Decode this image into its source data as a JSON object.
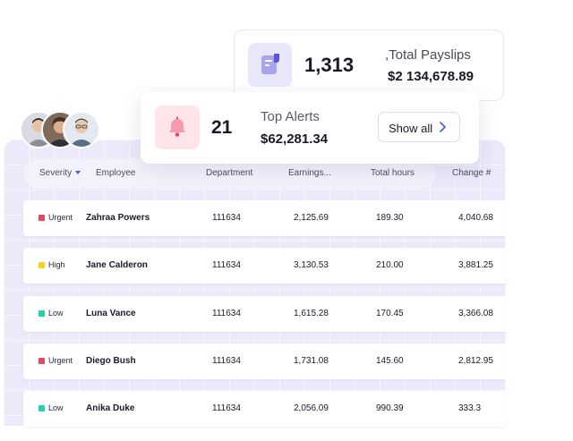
{
  "payslips_card": {
    "count": "1,313",
    "title": ",Total Payslips",
    "amount": "$2 134,678.89",
    "icon": "payslip-icon"
  },
  "alerts_card": {
    "count": "21",
    "title": "Top Alerts",
    "amount": "$62,281.34",
    "button_label": "Show all",
    "icon": "bell-icon"
  },
  "table": {
    "columns": {
      "severity": "Severity",
      "employee": "Employee",
      "department": "Department",
      "earnings": "Earnings...",
      "hours": "Total hours",
      "change": "Change #"
    },
    "rows": [
      {
        "severity": "Urgent",
        "name": "Zahraa Powers",
        "department": "111634",
        "earnings": "2,125.69",
        "hours": "189.30",
        "change": "4,040.68"
      },
      {
        "severity": "High",
        "name": "Jane Calderon",
        "department": "111634",
        "earnings": "3,130.53",
        "hours": "210.00",
        "change": "3,881.25"
      },
      {
        "severity": "Low",
        "name": "Luna Vance",
        "department": "111634",
        "earnings": "1,615.28",
        "hours": "170.45",
        "change": "3,366.08"
      },
      {
        "severity": "Urgent",
        "name": "Diego Bush",
        "department": "111634",
        "earnings": "1,731.08",
        "hours": "145.60",
        "change": "2,812.95"
      },
      {
        "severity": "Low",
        "name": "Anika Duke",
        "department": "111634",
        "earnings": "2,056.09",
        "hours": "990.39",
        "change": "333.3"
      }
    ]
  },
  "colors": {
    "urgent": "#e8475f",
    "high": "#f6d21a",
    "low": "#22d3a6",
    "accent": "#4456e6",
    "panel": "#ebeafb"
  }
}
